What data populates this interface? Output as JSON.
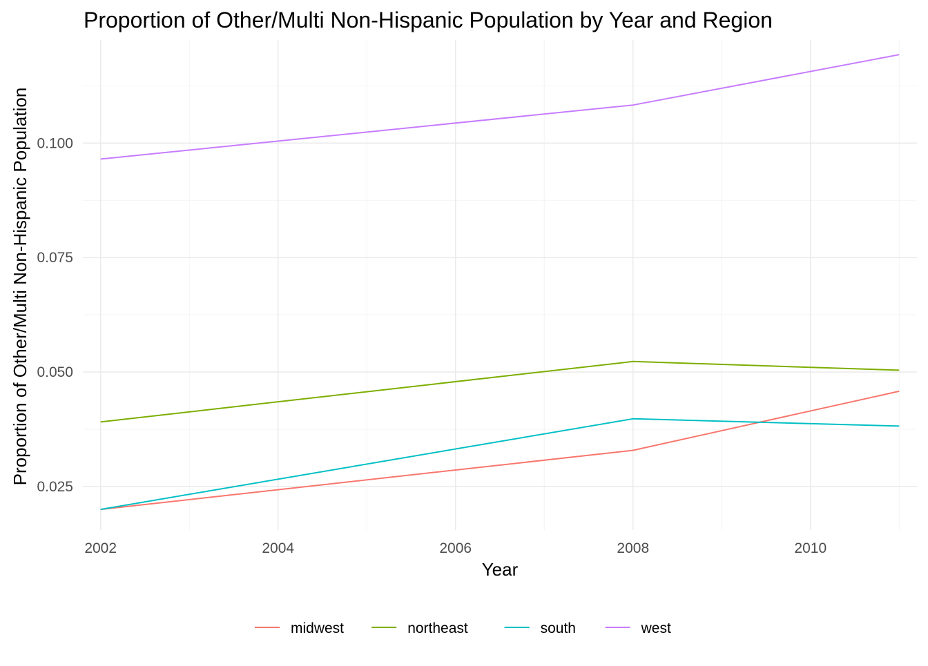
{
  "chart_data": {
    "type": "line",
    "title": "Proportion of Other/Multi Non-Hispanic Population by Year and Region",
    "xlabel": "Year",
    "ylabel": "Proportion of Other/Multi Non-Hispanic Population",
    "x": [
      2002,
      2008,
      2011
    ],
    "xlim": [
      2001.8,
      2011.2
    ],
    "ylim": [
      0.0155,
      0.1225
    ],
    "x_ticks": [
      2002,
      2004,
      2006,
      2008,
      2010
    ],
    "x_tick_labels": [
      "2002",
      "2004",
      "2006",
      "2008",
      "2010"
    ],
    "y_ticks": [
      0.025,
      0.05,
      0.075,
      0.1
    ],
    "y_tick_labels": [
      "0.025",
      "0.050",
      "0.075",
      "0.100"
    ],
    "grid": true,
    "legend_position": "bottom",
    "series": [
      {
        "name": "midwest",
        "color": "#F8766D",
        "values": [
          0.02,
          0.0329,
          0.0458
        ]
      },
      {
        "name": "northeast",
        "color": "#7CAE00",
        "values": [
          0.0391,
          0.0523,
          0.0504
        ]
      },
      {
        "name": "south",
        "color": "#00BFC4",
        "values": [
          0.02,
          0.0398,
          0.0382
        ]
      },
      {
        "name": "west",
        "color": "#C77CFF",
        "values": [
          0.0965,
          0.1083,
          0.1193
        ]
      }
    ]
  }
}
